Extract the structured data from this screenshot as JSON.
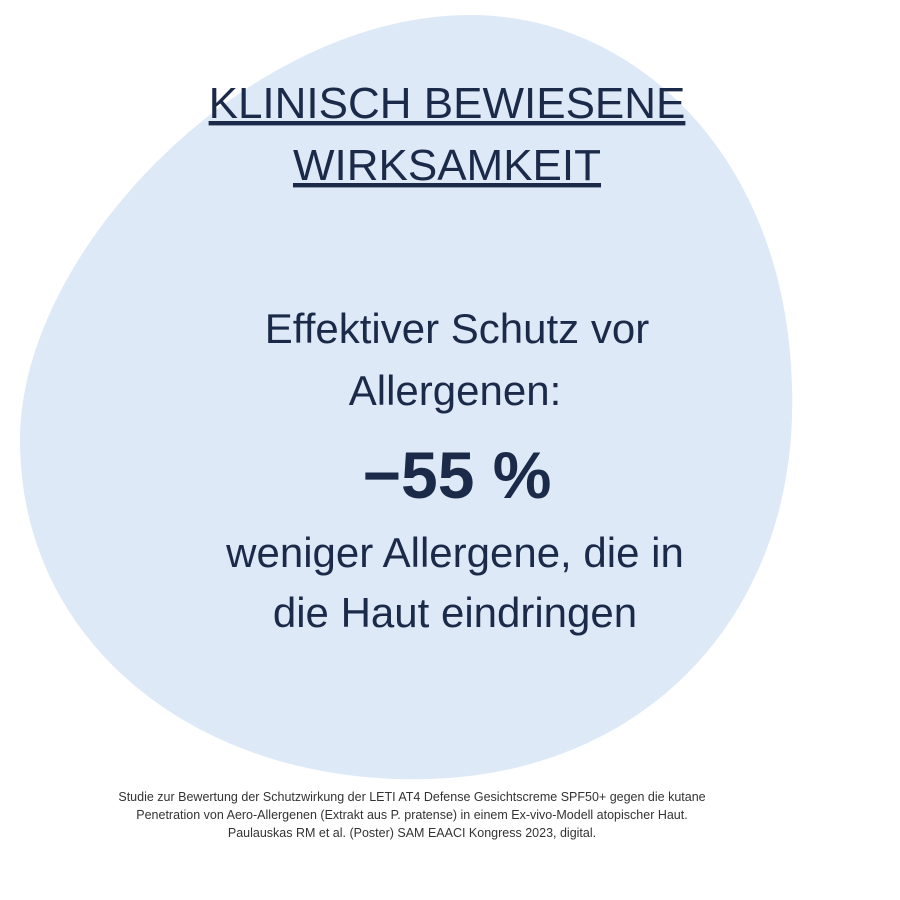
{
  "header": {
    "title_lines": [
      "KLINISCH BEWIESENE",
      "WIRKSAMKEIT"
    ]
  },
  "claim": {
    "lines_before": [
      "Effektiver Schutz vor",
      "Allergenen:"
    ],
    "stat": "−55 %",
    "lines_after": [
      "weniger Allergene, die in",
      "die Haut eindringen"
    ]
  },
  "footnote": {
    "lines": [
      "Studie zur Bewertung der Schutzwirkung der LETI AT4 Defense Gesichtscreme SPF50+ gegen die kutane",
      "Penetration von Aero-Allergenen (Extrakt aus P. pratense) in einem Ex-vivo-Modell atopischer Haut.",
      "Paulauskas RM et al. (Poster) SAM EAACI Kongress 2023, digital."
    ]
  }
}
